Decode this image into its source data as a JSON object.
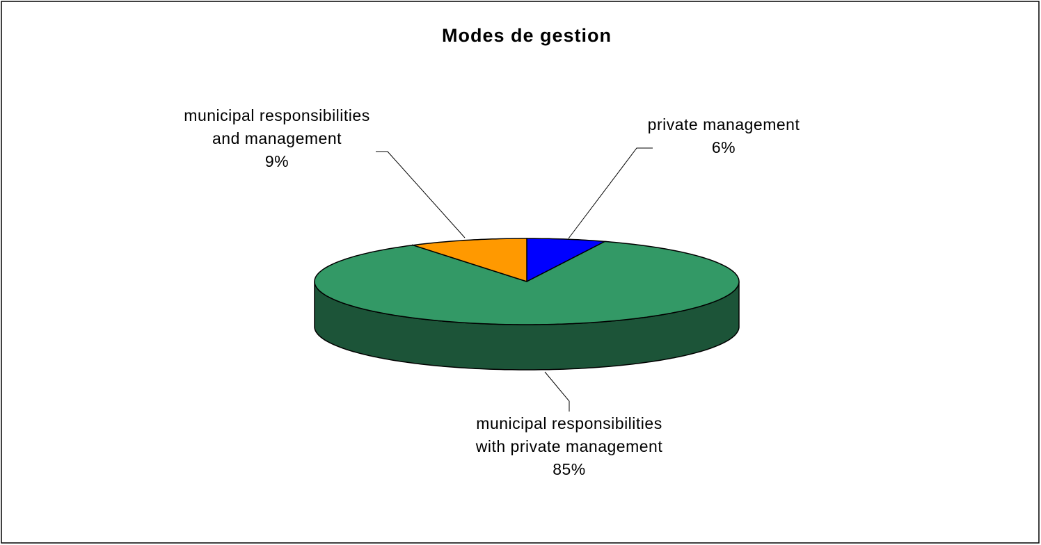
{
  "chart_data": {
    "type": "pie",
    "title": "Modes de gestion",
    "categories": [
      "private management",
      "municipal responsibilities with private management",
      "municipal responsibilities and management"
    ],
    "series": [
      {
        "colors": [
          "#0000ff",
          "#339966",
          "#ff9900"
        ],
        "values": [
          6,
          85,
          9
        ],
        "value_labels": [
          "6%",
          "85%",
          "9%"
        ]
      }
    ]
  }
}
